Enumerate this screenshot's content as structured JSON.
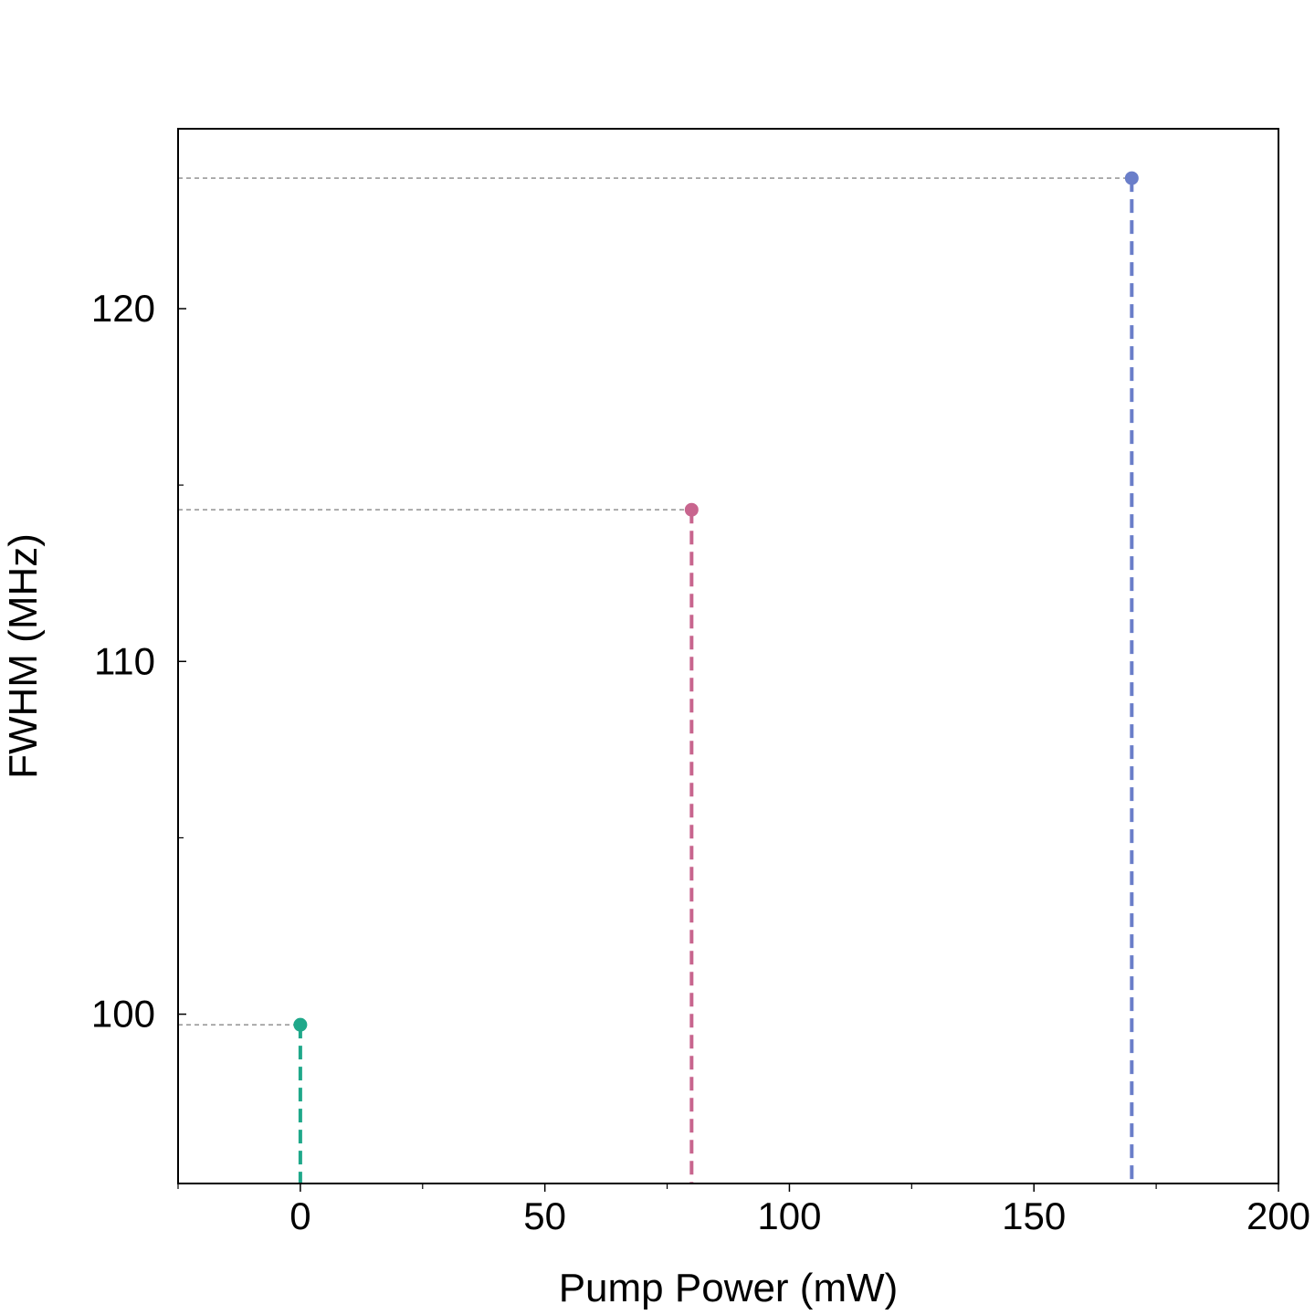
{
  "chart_data": {
    "type": "scatter",
    "title": "",
    "xlabel": "Pump Power (mW)",
    "ylabel": "FWHM (MHz)",
    "xlim": [
      -25,
      200
    ],
    "ylim": [
      95.2,
      125.1
    ],
    "x_ticks": [
      0,
      50,
      100,
      150,
      200
    ],
    "x_minor_ticks": [
      -25,
      25,
      75,
      125,
      175
    ],
    "y_ticks": [
      100,
      110,
      120
    ],
    "y_minor_ticks": [
      105,
      115
    ],
    "grid": false,
    "legend": "none",
    "stems": "dashed vertical line from each point down to the x-axis",
    "guides": "thin dotted grey horizontal line from each point to the y-axis",
    "series": [
      {
        "x": 0,
        "y": 99.7,
        "color": "#1fa88a"
      },
      {
        "x": 80,
        "y": 114.3,
        "color": "#c8658e"
      },
      {
        "x": 170,
        "y": 123.7,
        "color": "#6a7ec9"
      }
    ]
  }
}
